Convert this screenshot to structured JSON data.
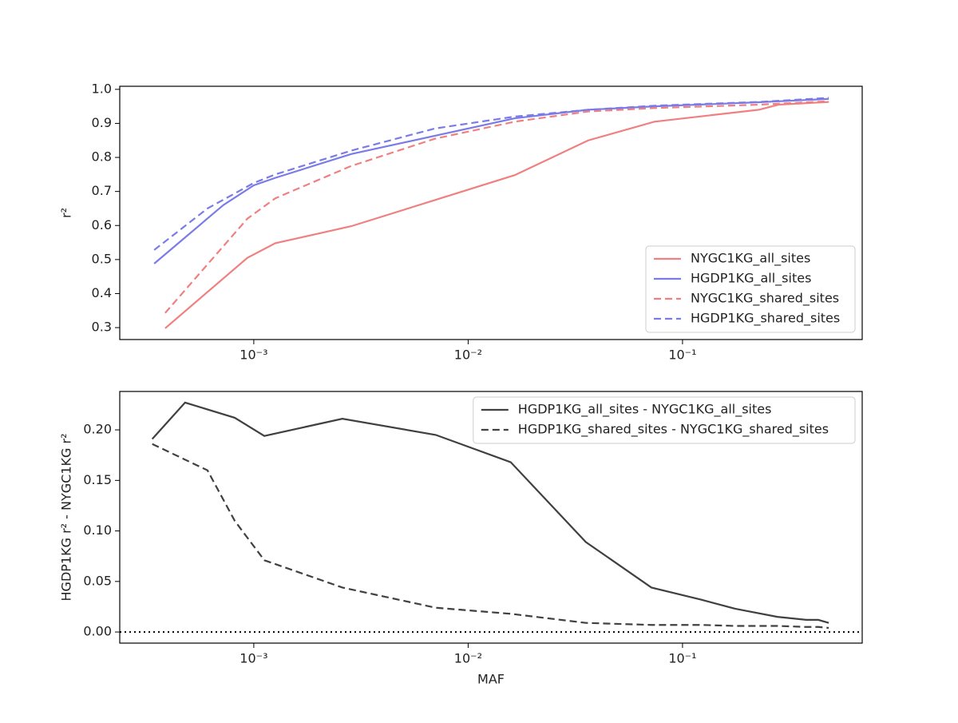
{
  "chart_data": [
    {
      "type": "line",
      "ylabel": "r²",
      "xscale": "log",
      "xlim": [
        0.000237,
        0.689
      ],
      "xticks": [
        {
          "value": 0.001,
          "label": "10⁻³"
        },
        {
          "value": 0.01,
          "label": "10⁻²"
        },
        {
          "value": 0.1,
          "label": "10⁻¹"
        }
      ],
      "ylim": [
        0.265,
        1.009
      ],
      "yticks": [
        0.3,
        0.4,
        0.5,
        0.6,
        0.7,
        0.8,
        0.9,
        {
          "value": 1.0,
          "label": "1.0"
        }
      ],
      "legend": "lower right",
      "series": [
        {
          "name": "NYGC1KG_all_sites",
          "color": "#f08080",
          "linestyle": "solid",
          "x": [
            0.000386,
            0.000933,
            0.00126,
            0.00285,
            0.0165,
            0.0363,
            0.074,
            0.227,
            0.28,
            0.481
          ],
          "values": [
            0.298,
            0.505,
            0.548,
            0.598,
            0.748,
            0.85,
            0.905,
            0.94,
            0.955,
            0.963
          ]
        },
        {
          "name": "HGDP1KG_all_sites",
          "color": "#7b7be8",
          "linestyle": "solid",
          "x": [
            0.000343,
            0.000721,
            0.001,
            0.00126,
            0.00285,
            0.0165,
            0.0363,
            0.074,
            0.227,
            0.481
          ],
          "values": [
            0.488,
            0.66,
            0.718,
            0.74,
            0.81,
            0.915,
            0.94,
            0.95,
            0.962,
            0.972
          ]
        },
        {
          "name": "NYGC1KG_shared_sites",
          "color": "#f08080",
          "linestyle": "dashed",
          "x": [
            0.000386,
            0.000933,
            0.00126,
            0.00285,
            0.007,
            0.0165,
            0.0363,
            0.074,
            0.227,
            0.481
          ],
          "values": [
            0.343,
            0.62,
            0.68,
            0.775,
            0.855,
            0.905,
            0.935,
            0.945,
            0.955,
            0.965
          ]
        },
        {
          "name": "HGDP1KG_shared_sites",
          "color": "#7b7be8",
          "linestyle": "dashed",
          "x": [
            0.000343,
            0.000608,
            0.001,
            0.00126,
            0.00285,
            0.007,
            0.0165,
            0.0363,
            0.074,
            0.227,
            0.481
          ],
          "values": [
            0.528,
            0.65,
            0.725,
            0.75,
            0.82,
            0.885,
            0.92,
            0.94,
            0.952,
            0.963,
            0.975
          ]
        }
      ]
    },
    {
      "type": "line",
      "xlabel": "MAF",
      "ylabel": "HGDP1KG r² - NYGC1KG r²",
      "xscale": "log",
      "xlim": [
        0.000237,
        0.689
      ],
      "xticks": [
        {
          "value": 0.001,
          "label": "10⁻³"
        },
        {
          "value": 0.01,
          "label": "10⁻²"
        },
        {
          "value": 0.1,
          "label": "10⁻¹"
        }
      ],
      "ylim": [
        -0.011,
        0.238
      ],
      "yticks": [
        {
          "value": 0,
          "label": "0.00"
        },
        {
          "value": 0.05,
          "label": "0.05"
        },
        {
          "value": 0.1,
          "label": "0.10"
        },
        {
          "value": 0.15,
          "label": "0.15"
        },
        {
          "value": 0.2,
          "label": "0.20"
        }
      ],
      "hline": 0,
      "legend": "upper right",
      "series": [
        {
          "name": "HGDP1KG_all_sites - NYGC1KG_all_sites",
          "color": "#404040",
          "linestyle": "solid",
          "x": [
            0.000336,
            0.000478,
            0.000815,
            0.00112,
            0.00259,
            0.00706,
            0.0158,
            0.0354,
            0.0716,
            0.122,
            0.176,
            0.277,
            0.378,
            0.43,
            0.481
          ],
          "values": [
            0.191,
            0.227,
            0.212,
            0.194,
            0.211,
            0.195,
            0.168,
            0.089,
            0.044,
            0.032,
            0.023,
            0.015,
            0.012,
            0.012,
            0.009
          ]
        },
        {
          "name": "HGDP1KG_shared_sites - NYGC1KG_shared_sites",
          "color": "#404040",
          "linestyle": "dashed",
          "x": [
            0.000336,
            0.000608,
            0.000815,
            0.00112,
            0.00259,
            0.00706,
            0.0158,
            0.0354,
            0.0716,
            0.122,
            0.176,
            0.277,
            0.378,
            0.43,
            0.481
          ],
          "values": [
            0.186,
            0.16,
            0.11,
            0.071,
            0.044,
            0.024,
            0.018,
            0.009,
            0.007,
            0.007,
            0.006,
            0.006,
            0.005,
            0.005,
            0.004
          ]
        }
      ]
    }
  ]
}
